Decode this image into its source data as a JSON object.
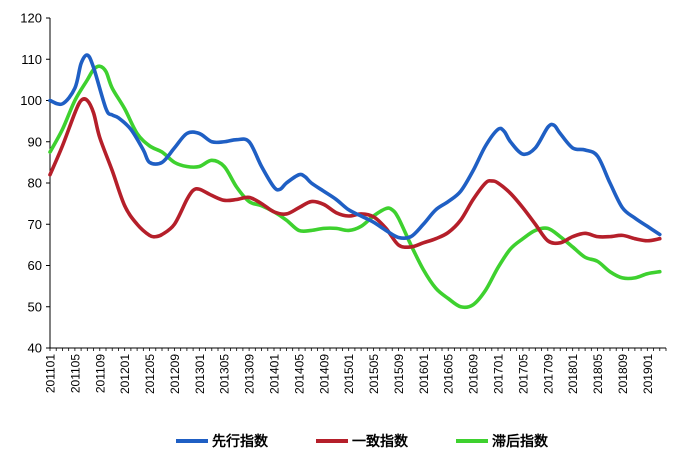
{
  "chart_data": {
    "type": "line",
    "title": "",
    "xlabel": "",
    "ylabel": "",
    "ylim": [
      40,
      120
    ],
    "yticks": [
      40,
      50,
      60,
      70,
      80,
      90,
      100,
      110,
      120
    ],
    "x_tick_labels": [
      "201101",
      "201105",
      "201109",
      "201201",
      "201205",
      "201209",
      "201301",
      "201305",
      "201309",
      "201401",
      "201405",
      "201409",
      "201501",
      "201505",
      "201509",
      "201601",
      "201605",
      "201609",
      "201701",
      "201705",
      "201709",
      "201801",
      "201805",
      "201809",
      "201901"
    ],
    "x_range": [
      "201101",
      "201904"
    ],
    "grid": false,
    "legend_position": "bottom",
    "series": [
      {
        "name": "先行指数",
        "color": "#1f5fc4",
        "points": [
          [
            "201101",
            100
          ],
          [
            "201103",
            99.2
          ],
          [
            "201105",
            103
          ],
          [
            "201106",
            109
          ],
          [
            "201107",
            111
          ],
          [
            "201108",
            108
          ],
          [
            "201110",
            98
          ],
          [
            "201111",
            96.5
          ],
          [
            "201112",
            95.8
          ],
          [
            "201202",
            93
          ],
          [
            "201204",
            88
          ],
          [
            "201205",
            85
          ],
          [
            "201207",
            85
          ],
          [
            "201209",
            88.5
          ],
          [
            "201211",
            92
          ],
          [
            "201301",
            92
          ],
          [
            "201303",
            90
          ],
          [
            "201305",
            90
          ],
          [
            "201307",
            90.5
          ],
          [
            "201309",
            90
          ],
          [
            "201311",
            84
          ],
          [
            "201401",
            79
          ],
          [
            "201402",
            78.5
          ],
          [
            "201403",
            80
          ],
          [
            "201405",
            82
          ],
          [
            "201406",
            81.5
          ],
          [
            "201407",
            80
          ],
          [
            "201409",
            78
          ],
          [
            "201411",
            76
          ],
          [
            "201501",
            73.5
          ],
          [
            "201503",
            72
          ],
          [
            "201505",
            70.5
          ],
          [
            "201507",
            68.5
          ],
          [
            "201509",
            66.8
          ],
          [
            "201511",
            67
          ],
          [
            "201601",
            70
          ],
          [
            "201603",
            73.5
          ],
          [
            "201605",
            75.5
          ],
          [
            "201607",
            78
          ],
          [
            "201609",
            83
          ],
          [
            "201611",
            89
          ],
          [
            "201701",
            93
          ],
          [
            "201702",
            92.5
          ],
          [
            "201703",
            90
          ],
          [
            "201705",
            87
          ],
          [
            "201707",
            88.5
          ],
          [
            "201709",
            93.5
          ],
          [
            "201710",
            94
          ],
          [
            "201711",
            92
          ],
          [
            "201801",
            88.5
          ],
          [
            "201803",
            88
          ],
          [
            "201805",
            86.5
          ],
          [
            "201807",
            80
          ],
          [
            "201809",
            74
          ],
          [
            "201811",
            71.5
          ],
          [
            "201901",
            69.5
          ],
          [
            "201903",
            67.5
          ]
        ]
      },
      {
        "name": "一致指数",
        "color": "#b51f2a",
        "points": [
          [
            "201101",
            82
          ],
          [
            "201103",
            89
          ],
          [
            "201105",
            97
          ],
          [
            "201106",
            100
          ],
          [
            "201107",
            100
          ],
          [
            "201108",
            97
          ],
          [
            "201109",
            91
          ],
          [
            "201111",
            83
          ],
          [
            "201201",
            74.5
          ],
          [
            "201203",
            70
          ],
          [
            "201205",
            67.3
          ],
          [
            "201206",
            67
          ],
          [
            "201207",
            67.5
          ],
          [
            "201209",
            70
          ],
          [
            "201211",
            76
          ],
          [
            "201212",
            78.2
          ],
          [
            "201301",
            78.5
          ],
          [
            "201303",
            77
          ],
          [
            "201305",
            75.8
          ],
          [
            "201307",
            76
          ],
          [
            "201309",
            76.5
          ],
          [
            "201311",
            75
          ],
          [
            "201401",
            73
          ],
          [
            "201403",
            72.5
          ],
          [
            "201405",
            74
          ],
          [
            "201407",
            75.5
          ],
          [
            "201409",
            74.8
          ],
          [
            "201411",
            72.8
          ],
          [
            "201501",
            72
          ],
          [
            "201503",
            72.5
          ],
          [
            "201505",
            71.8
          ],
          [
            "201507",
            69
          ],
          [
            "201509",
            65
          ],
          [
            "201511",
            64.5
          ],
          [
            "201601",
            65.5
          ],
          [
            "201603",
            66.5
          ],
          [
            "201605",
            68
          ],
          [
            "201607",
            71
          ],
          [
            "201609",
            76
          ],
          [
            "201611",
            80
          ],
          [
            "201612",
            80.5
          ],
          [
            "201701",
            80
          ],
          [
            "201703",
            77.5
          ],
          [
            "201705",
            74
          ],
          [
            "201707",
            70
          ],
          [
            "201709",
            66
          ],
          [
            "201711",
            65.5
          ],
          [
            "201801",
            67
          ],
          [
            "201803",
            67.8
          ],
          [
            "201805",
            67
          ],
          [
            "201807",
            67
          ],
          [
            "201809",
            67.3
          ],
          [
            "201811",
            66.5
          ],
          [
            "201901",
            66
          ],
          [
            "201903",
            66.5
          ]
        ]
      },
      {
        "name": "滞后指数",
        "color": "#3ed12f",
        "points": [
          [
            "201101",
            87.5
          ],
          [
            "201103",
            93
          ],
          [
            "201105",
            100
          ],
          [
            "201107",
            105
          ],
          [
            "201108",
            107.5
          ],
          [
            "201109",
            108.3
          ],
          [
            "201110",
            107
          ],
          [
            "201111",
            103
          ],
          [
            "201201",
            98
          ],
          [
            "201203",
            92
          ],
          [
            "201205",
            89
          ],
          [
            "201207",
            87.5
          ],
          [
            "201209",
            85
          ],
          [
            "201211",
            84
          ],
          [
            "201301",
            84
          ],
          [
            "201303",
            85.5
          ],
          [
            "201305",
            84
          ],
          [
            "201307",
            79
          ],
          [
            "201309",
            75.5
          ],
          [
            "201311",
            74.5
          ],
          [
            "201401",
            73
          ],
          [
            "201403",
            71
          ],
          [
            "201405",
            68.5
          ],
          [
            "201407",
            68.5
          ],
          [
            "201409",
            69
          ],
          [
            "201411",
            69
          ],
          [
            "201501",
            68.5
          ],
          [
            "201503",
            69.5
          ],
          [
            "201505",
            72
          ],
          [
            "201507",
            73.8
          ],
          [
            "201508",
            73.5
          ],
          [
            "201509",
            71.5
          ],
          [
            "201511",
            65
          ],
          [
            "201601",
            59
          ],
          [
            "201603",
            54.5
          ],
          [
            "201605",
            52
          ],
          [
            "201607",
            50
          ],
          [
            "201609",
            50.5
          ],
          [
            "201611",
            54
          ],
          [
            "201701",
            59.5
          ],
          [
            "201703",
            64
          ],
          [
            "201705",
            66.5
          ],
          [
            "201707",
            68.5
          ],
          [
            "201709",
            69
          ],
          [
            "201711",
            67
          ],
          [
            "201801",
            64.5
          ],
          [
            "201803",
            62
          ],
          [
            "201805",
            61
          ],
          [
            "201807",
            58.5
          ],
          [
            "201809",
            57
          ],
          [
            "201811",
            57
          ],
          [
            "201901",
            58
          ],
          [
            "201903",
            58.5
          ]
        ]
      }
    ]
  }
}
